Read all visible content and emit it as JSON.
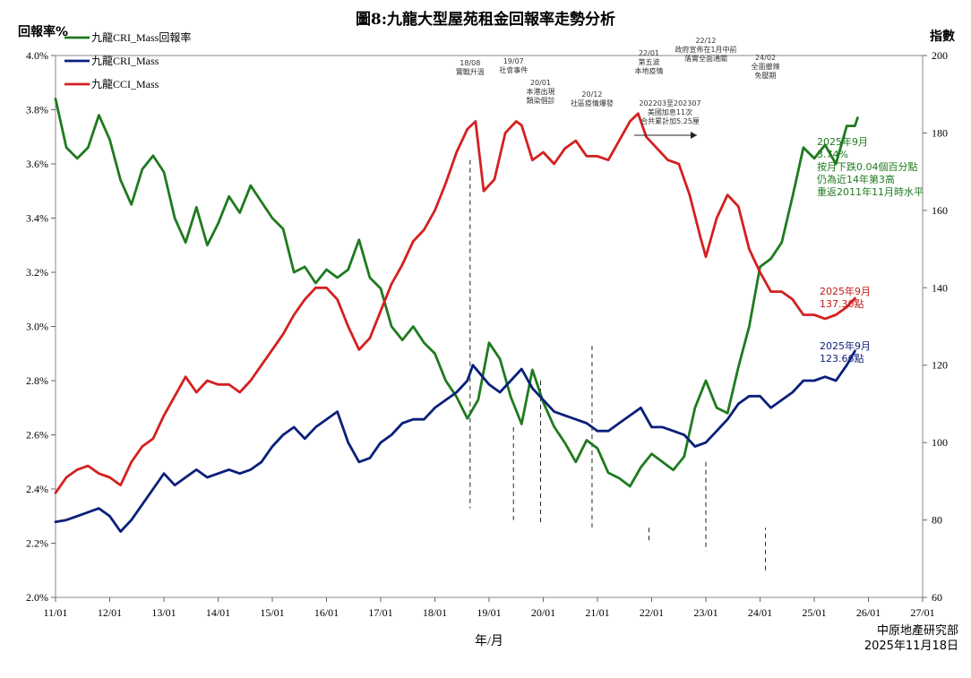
{
  "chart_data": {
    "type": "line",
    "title": "圖8:九龍大型屋苑租金回報率走勢分析",
    "left_axis": {
      "label": "回報率%",
      "min": 2.0,
      "max": 4.0,
      "ticks": [
        "2.0%",
        "2.2%",
        "2.4%",
        "2.6%",
        "2.8%",
        "3.0%",
        "3.2%",
        "3.4%",
        "3.6%",
        "3.8%",
        "4.0%"
      ]
    },
    "right_axis": {
      "label": "指數",
      "min": 60,
      "max": 200,
      "ticks": [
        "60",
        "80",
        "100",
        "120",
        "140",
        "160",
        "180",
        "200"
      ]
    },
    "xlabel": "年/月",
    "x_ticks": [
      "11/01",
      "12/01",
      "13/01",
      "14/01",
      "15/01",
      "16/01",
      "17/01",
      "18/01",
      "19/01",
      "20/01",
      "21/01",
      "22/01",
      "23/01",
      "24/01",
      "25/01",
      "26/01",
      "27/01"
    ],
    "x_range": [
      2011.0,
      2027.0
    ],
    "legend": [
      "九龍CRI_Mass回報率",
      "九龍CRI_Mass",
      "九龍CCI_Mass"
    ],
    "series": [
      {
        "name": "九龍CRI_Mass回報率",
        "axis": "left",
        "color": "#1f7a1f",
        "points": [
          [
            2011.0,
            3.84
          ],
          [
            2011.2,
            3.66
          ],
          [
            2011.4,
            3.62
          ],
          [
            2011.6,
            3.66
          ],
          [
            2011.8,
            3.78
          ],
          [
            2012.0,
            3.69
          ],
          [
            2012.2,
            3.54
          ],
          [
            2012.4,
            3.45
          ],
          [
            2012.6,
            3.58
          ],
          [
            2012.8,
            3.63
          ],
          [
            2013.0,
            3.57
          ],
          [
            2013.2,
            3.4
          ],
          [
            2013.4,
            3.31
          ],
          [
            2013.6,
            3.44
          ],
          [
            2013.8,
            3.3
          ],
          [
            2014.0,
            3.38
          ],
          [
            2014.2,
            3.48
          ],
          [
            2014.4,
            3.42
          ],
          [
            2014.6,
            3.52
          ],
          [
            2014.8,
            3.46
          ],
          [
            2015.0,
            3.4
          ],
          [
            2015.2,
            3.36
          ],
          [
            2015.4,
            3.2
          ],
          [
            2015.6,
            3.22
          ],
          [
            2015.8,
            3.16
          ],
          [
            2016.0,
            3.21
          ],
          [
            2016.2,
            3.18
          ],
          [
            2016.4,
            3.21
          ],
          [
            2016.6,
            3.32
          ],
          [
            2016.8,
            3.18
          ],
          [
            2017.0,
            3.14
          ],
          [
            2017.2,
            3.0
          ],
          [
            2017.4,
            2.95
          ],
          [
            2017.6,
            3.0
          ],
          [
            2017.8,
            2.94
          ],
          [
            2018.0,
            2.9
          ],
          [
            2018.2,
            2.8
          ],
          [
            2018.4,
            2.74
          ],
          [
            2018.6,
            2.66
          ],
          [
            2018.8,
            2.73
          ],
          [
            2019.0,
            2.94
          ],
          [
            2019.2,
            2.88
          ],
          [
            2019.4,
            2.74
          ],
          [
            2019.6,
            2.64
          ],
          [
            2019.8,
            2.84
          ],
          [
            2020.0,
            2.72
          ],
          [
            2020.2,
            2.63
          ],
          [
            2020.4,
            2.57
          ],
          [
            2020.6,
            2.5
          ],
          [
            2020.8,
            2.58
          ],
          [
            2021.0,
            2.55
          ],
          [
            2021.2,
            2.46
          ],
          [
            2021.4,
            2.44
          ],
          [
            2021.6,
            2.41
          ],
          [
            2021.8,
            2.48
          ],
          [
            2022.0,
            2.53
          ],
          [
            2022.2,
            2.5
          ],
          [
            2022.4,
            2.47
          ],
          [
            2022.6,
            2.52
          ],
          [
            2022.8,
            2.7
          ],
          [
            2023.0,
            2.8
          ],
          [
            2023.2,
            2.7
          ],
          [
            2023.4,
            2.68
          ],
          [
            2023.6,
            2.85
          ],
          [
            2023.8,
            3.0
          ],
          [
            2024.0,
            3.22
          ],
          [
            2024.2,
            3.25
          ],
          [
            2024.4,
            3.31
          ],
          [
            2024.6,
            3.48
          ],
          [
            2024.8,
            3.66
          ],
          [
            2025.0,
            3.62
          ],
          [
            2025.2,
            3.67
          ],
          [
            2025.4,
            3.6
          ],
          [
            2025.6,
            3.74
          ],
          [
            2025.8,
            3.77
          ],
          [
            2025.75,
            3.74
          ]
        ]
      },
      {
        "name": "九龍CRI_Mass",
        "axis": "right",
        "color": "#0a1f7a",
        "points": [
          [
            2011.0,
            79.5
          ],
          [
            2011.2,
            80
          ],
          [
            2011.4,
            81
          ],
          [
            2011.6,
            82
          ],
          [
            2011.8,
            83
          ],
          [
            2012.0,
            81
          ],
          [
            2012.2,
            77
          ],
          [
            2012.4,
            80
          ],
          [
            2012.6,
            84
          ],
          [
            2012.8,
            88
          ],
          [
            2013.0,
            92
          ],
          [
            2013.2,
            89
          ],
          [
            2013.4,
            91
          ],
          [
            2013.6,
            93
          ],
          [
            2013.8,
            91
          ],
          [
            2014.0,
            92
          ],
          [
            2014.2,
            93
          ],
          [
            2014.4,
            92
          ],
          [
            2014.6,
            93
          ],
          [
            2014.8,
            95
          ],
          [
            2015.0,
            99
          ],
          [
            2015.2,
            102
          ],
          [
            2015.4,
            104
          ],
          [
            2015.6,
            101
          ],
          [
            2015.8,
            104
          ],
          [
            2016.0,
            106
          ],
          [
            2016.2,
            108
          ],
          [
            2016.4,
            100
          ],
          [
            2016.6,
            95
          ],
          [
            2016.8,
            96
          ],
          [
            2017.0,
            100
          ],
          [
            2017.2,
            102
          ],
          [
            2017.4,
            105
          ],
          [
            2017.6,
            106
          ],
          [
            2017.8,
            106
          ],
          [
            2018.0,
            109
          ],
          [
            2018.2,
            111
          ],
          [
            2018.4,
            113
          ],
          [
            2018.6,
            116
          ],
          [
            2018.7,
            120
          ],
          [
            2019.0,
            115
          ],
          [
            2019.2,
            113
          ],
          [
            2019.4,
            116
          ],
          [
            2019.6,
            119
          ],
          [
            2019.8,
            114
          ],
          [
            2020.0,
            111
          ],
          [
            2020.2,
            108
          ],
          [
            2020.4,
            107
          ],
          [
            2020.6,
            106
          ],
          [
            2020.8,
            105
          ],
          [
            2021.0,
            103
          ],
          [
            2021.2,
            103
          ],
          [
            2021.4,
            105
          ],
          [
            2021.6,
            107
          ],
          [
            2021.8,
            109
          ],
          [
            2022.0,
            104
          ],
          [
            2022.2,
            104
          ],
          [
            2022.4,
            103
          ],
          [
            2022.6,
            102
          ],
          [
            2022.8,
            99
          ],
          [
            2023.0,
            100
          ],
          [
            2023.2,
            103
          ],
          [
            2023.4,
            106
          ],
          [
            2023.6,
            110
          ],
          [
            2023.8,
            112
          ],
          [
            2024.0,
            112
          ],
          [
            2024.2,
            109
          ],
          [
            2024.4,
            111
          ],
          [
            2024.6,
            113
          ],
          [
            2024.8,
            116
          ],
          [
            2025.0,
            116
          ],
          [
            2025.2,
            117
          ],
          [
            2025.4,
            116
          ],
          [
            2025.6,
            120
          ],
          [
            2025.75,
            123.66
          ]
        ]
      },
      {
        "name": "九龍CCI_Mass",
        "axis": "right",
        "color": "#d42020",
        "points": [
          [
            2011.0,
            87
          ],
          [
            2011.2,
            91
          ],
          [
            2011.4,
            93
          ],
          [
            2011.6,
            94
          ],
          [
            2011.8,
            92
          ],
          [
            2012.0,
            91
          ],
          [
            2012.2,
            89
          ],
          [
            2012.4,
            95
          ],
          [
            2012.6,
            99
          ],
          [
            2012.8,
            101
          ],
          [
            2013.0,
            107
          ],
          [
            2013.2,
            112
          ],
          [
            2013.4,
            117
          ],
          [
            2013.6,
            113
          ],
          [
            2013.8,
            116
          ],
          [
            2014.0,
            115
          ],
          [
            2014.2,
            115
          ],
          [
            2014.4,
            113
          ],
          [
            2014.6,
            116
          ],
          [
            2014.8,
            120
          ],
          [
            2015.0,
            124
          ],
          [
            2015.2,
            128
          ],
          [
            2015.4,
            133
          ],
          [
            2015.6,
            137
          ],
          [
            2015.8,
            140
          ],
          [
            2016.0,
            140
          ],
          [
            2016.2,
            137
          ],
          [
            2016.4,
            130
          ],
          [
            2016.6,
            124
          ],
          [
            2016.8,
            127
          ],
          [
            2017.0,
            134
          ],
          [
            2017.2,
            141
          ],
          [
            2017.4,
            146
          ],
          [
            2017.6,
            152
          ],
          [
            2017.8,
            155
          ],
          [
            2018.0,
            160
          ],
          [
            2018.2,
            167
          ],
          [
            2018.4,
            175
          ],
          [
            2018.6,
            181
          ],
          [
            2018.75,
            183
          ],
          [
            2018.9,
            165
          ],
          [
            2019.1,
            168
          ],
          [
            2019.3,
            180
          ],
          [
            2019.5,
            183
          ],
          [
            2019.6,
            182
          ],
          [
            2019.8,
            173
          ],
          [
            2020.0,
            175
          ],
          [
            2020.2,
            172
          ],
          [
            2020.4,
            176
          ],
          [
            2020.6,
            178
          ],
          [
            2020.8,
            174
          ],
          [
            2021.0,
            174
          ],
          [
            2021.2,
            173
          ],
          [
            2021.4,
            178
          ],
          [
            2021.6,
            183
          ],
          [
            2021.75,
            185
          ],
          [
            2021.9,
            179
          ],
          [
            2022.1,
            176
          ],
          [
            2022.3,
            173
          ],
          [
            2022.5,
            172
          ],
          [
            2022.7,
            164
          ],
          [
            2022.9,
            153
          ],
          [
            2023.0,
            148
          ],
          [
            2023.2,
            158
          ],
          [
            2023.4,
            164
          ],
          [
            2023.6,
            161
          ],
          [
            2023.8,
            150
          ],
          [
            2024.0,
            144
          ],
          [
            2024.2,
            139
          ],
          [
            2024.4,
            139
          ],
          [
            2024.6,
            137
          ],
          [
            2024.8,
            133
          ],
          [
            2025.0,
            133
          ],
          [
            2025.2,
            132
          ],
          [
            2025.4,
            133
          ],
          [
            2025.6,
            135
          ],
          [
            2025.75,
            137.3
          ]
        ]
      }
    ],
    "event_markers": [
      {
        "x": 2018.65,
        "label": "18/08\n實戰升溫",
        "y_from": 173,
        "y_to": 83,
        "label_y": 67
      },
      {
        "x": 2019.45,
        "label": "19/07\n社會事件",
        "y_from": 104,
        "y_to": 80,
        "label_y": 64
      },
      {
        "x": 2019.95,
        "label": "20/01\n本港出現\n類染個診",
        "y_from": 116,
        "y_to": 79,
        "label_y": 86
      },
      {
        "x": 2020.9,
        "label": "20/12\n社區疫情爆發",
        "y_from": 125,
        "y_to": 78,
        "label_y": 102
      },
      {
        "x": 2021.95,
        "label": "22/01\n第五波\n本地疫情",
        "y_from": 78,
        "y_to": 74,
        "label_y": 55
      },
      {
        "x": 2023.0,
        "label": "22/12\n政府宣佈在1月中前\n落實全面通關",
        "y_from": 95,
        "y_to": 72,
        "label_y": 40
      },
      {
        "x": 2024.1,
        "label": "24/02\n全面撤辣\n免壓期",
        "y_from": 67,
        "y_to": 78,
        "label_y": 62
      }
    ],
    "annotations": {
      "interest_note": "202203至202307\n美國加息11次\n合共累計加5.25厘",
      "cri_return_note": "2025年9月\n3.74%\n按月下跌0.04個百分點\n仍為近14年第3高\n重返2011年11月時水平",
      "cci_note": "2025年9月\n137.30點",
      "cri_note": "2025年9月\n123.66點"
    },
    "source_text": "中原地產研究部\n2025年11月18日"
  }
}
